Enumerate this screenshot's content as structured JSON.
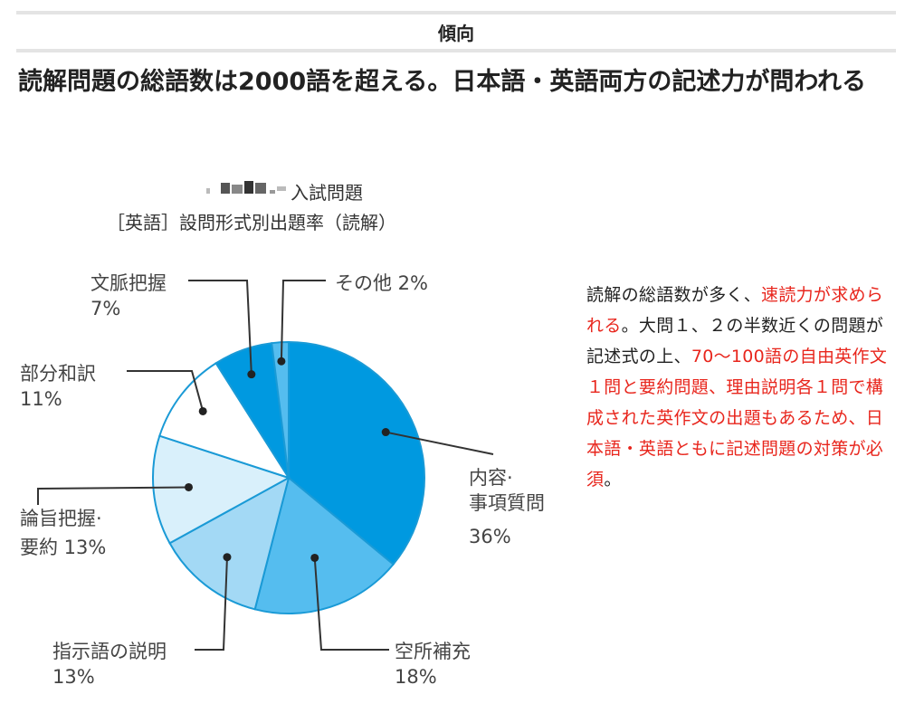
{
  "section": {
    "title": "傾向"
  },
  "headline": "読解問題の総語数は2000語を超える。日本語・英語両方の記述力が問われる",
  "chart_data": {
    "type": "pie",
    "title_line1": "入試問題",
    "title_line2": "［英語］設問形式別出題率（読解）",
    "start_angle_deg": 0,
    "direction": "clockwise",
    "slices": [
      {
        "key": "naiyou",
        "label_lines": [
          "内容·",
          "事項質問"
        ],
        "pct_text": "36%",
        "value": 36,
        "color": "#0099e0"
      },
      {
        "key": "kuusho",
        "label_lines": [
          "空所補充"
        ],
        "pct_text": "18%",
        "value": 18,
        "color": "#55bdef"
      },
      {
        "key": "shiji",
        "label_lines": [
          "指示語の説明"
        ],
        "pct_text": "13%",
        "value": 13,
        "color": "#a3d9f5"
      },
      {
        "key": "ronshi",
        "label_lines": [
          "論旨把握·",
          "要約 13%"
        ],
        "pct_text": "",
        "value": 13,
        "color": "#d9f0fb"
      },
      {
        "key": "bubun",
        "label_lines": [
          "部分和訳"
        ],
        "pct_text": "11%",
        "value": 11,
        "color": "#ffffff"
      },
      {
        "key": "bunmyaku",
        "label_lines": [
          "文脈把握"
        ],
        "pct_text": "7%",
        "value": 7,
        "color": "#0099e0"
      },
      {
        "key": "sonota",
        "label_lines": [
          "その他 2%"
        ],
        "pct_text": "",
        "value": 2,
        "color": "#55bdef"
      }
    ]
  },
  "description": {
    "segments": [
      {
        "text": "読解の総語数が多く、",
        "red": false
      },
      {
        "text": "速読力が求められる",
        "red": true
      },
      {
        "text": "。大問１、２の半数近くの問題が記述式の上、",
        "red": false
      },
      {
        "text": "70〜100語の自由英作文１問と要約問題、理由説明各１問で構成された英作文の出題もあるため、日本語・英語ともに記述問題の対策が必須",
        "red": true
      },
      {
        "text": "。",
        "red": false
      }
    ]
  }
}
